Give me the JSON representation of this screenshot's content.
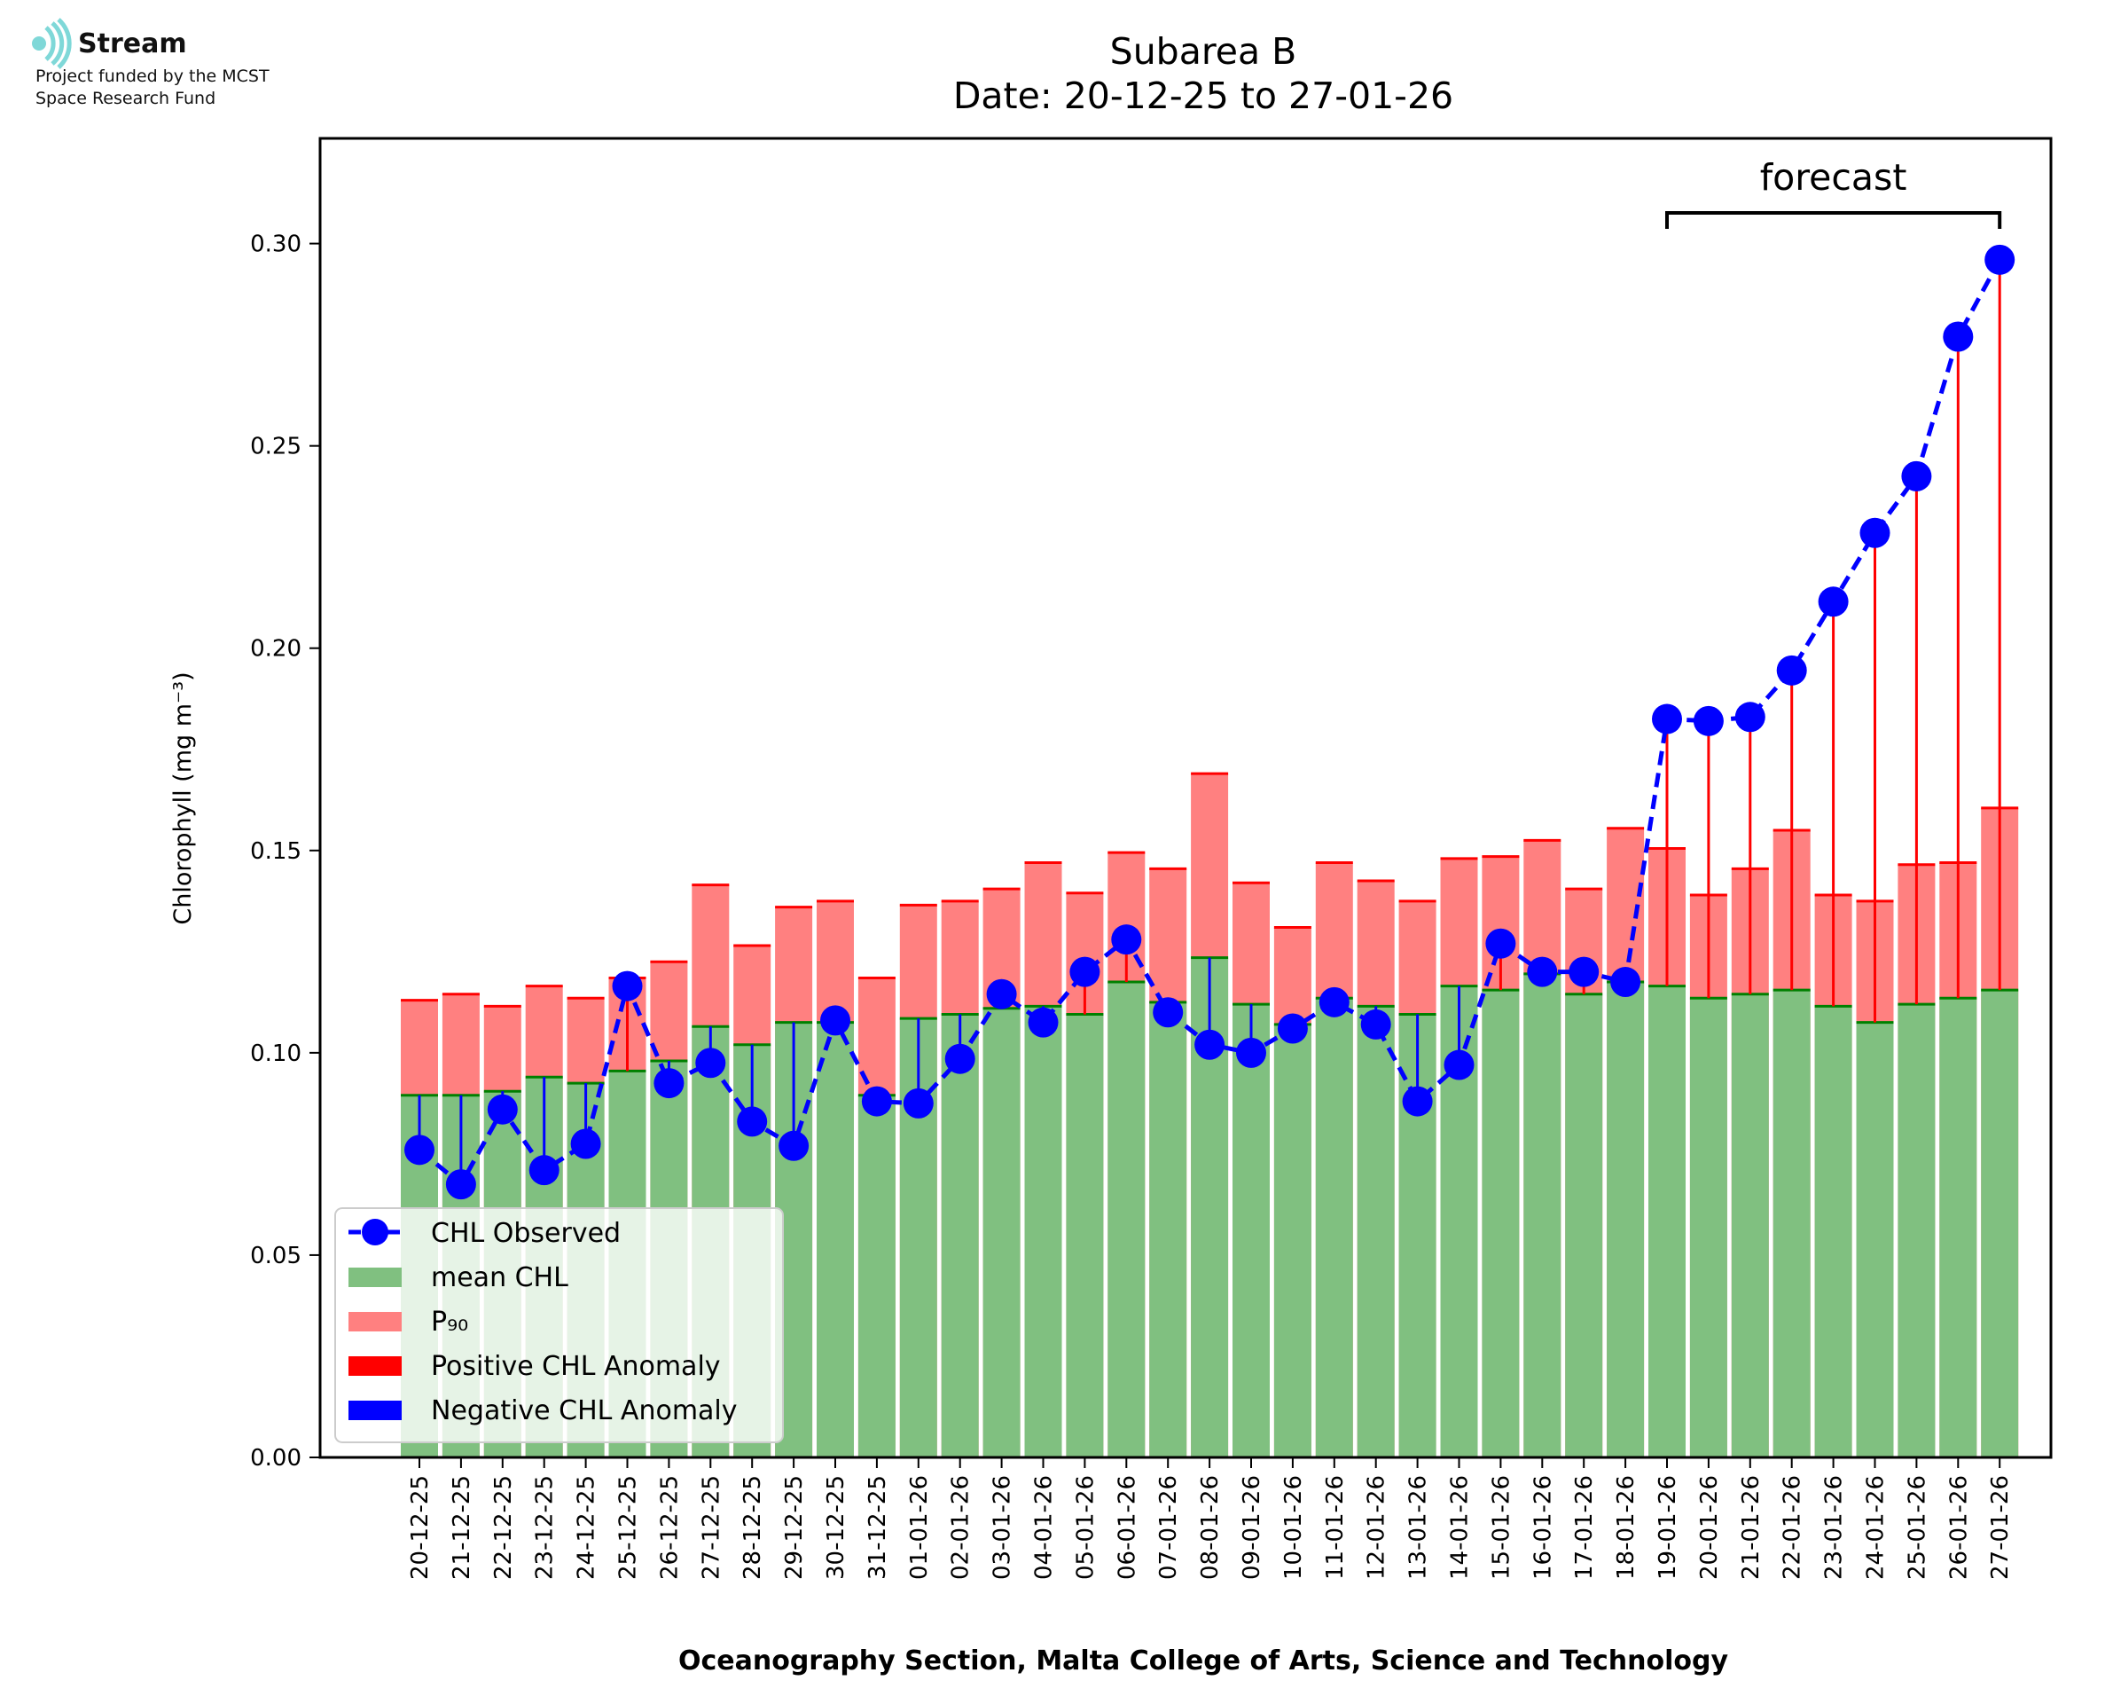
{
  "logo": {
    "title": "Stream",
    "subtitle_line1": "Project funded by the MCST",
    "subtitle_line2": "Space Research Fund"
  },
  "colors": {
    "mean": "#80c080",
    "mean_edge": "#008000",
    "p90": "#ff8080",
    "positive": "#ff0000",
    "negative": "#0000ff",
    "observed": "#0000ff"
  },
  "chart_data": {
    "type": "bar",
    "title": "Subarea B",
    "subtitle": "Date: 20-12-25 to 27-01-26",
    "xlabel": "Oceanography Section, Malta College of Arts, Science and Technology",
    "ylabel": "Chlorophyll (mg m⁻³)",
    "ylim": [
      0,
      0.326
    ],
    "yticks": [
      "0.00",
      "0.05",
      "0.10",
      "0.15",
      "0.20",
      "0.25",
      "0.30"
    ],
    "grid": false,
    "legend_position": "lower-left",
    "annotation": "forecast",
    "forecast_range": [
      "19-01-26",
      "27-01-26"
    ],
    "categories": [
      "20-12-25",
      "21-12-25",
      "22-12-25",
      "23-12-25",
      "24-12-25",
      "25-12-25",
      "26-12-25",
      "27-12-25",
      "28-12-25",
      "29-12-25",
      "30-12-25",
      "31-12-25",
      "01-01-26",
      "02-01-26",
      "03-01-26",
      "04-01-26",
      "05-01-26",
      "06-01-26",
      "07-01-26",
      "08-01-26",
      "09-01-26",
      "10-01-26",
      "11-01-26",
      "12-01-26",
      "13-01-26",
      "14-01-26",
      "15-01-26",
      "16-01-26",
      "17-01-26",
      "18-01-26",
      "19-01-26",
      "20-01-26",
      "21-01-26",
      "22-01-26",
      "23-01-26",
      "24-01-26",
      "25-01-26",
      "26-01-26",
      "27-01-26"
    ],
    "series": [
      {
        "name": "mean CHL",
        "values": [
          0.0895,
          0.0895,
          0.0905,
          0.094,
          0.0925,
          0.0955,
          0.098,
          0.1065,
          0.102,
          0.1075,
          0.1075,
          0.0895,
          0.1085,
          0.1095,
          0.111,
          0.1115,
          0.1095,
          0.1175,
          0.1125,
          0.1235,
          0.112,
          0.107,
          0.1135,
          0.1115,
          0.1095,
          0.1165,
          0.1155,
          0.1195,
          0.1145,
          0.1175,
          0.1165,
          0.1135,
          0.1145,
          0.1155,
          0.1115,
          0.1075,
          0.112,
          0.1135,
          0.1155
        ]
      },
      {
        "name": "P₉₀",
        "values": [
          0.113,
          0.1145,
          0.1115,
          0.1165,
          0.1135,
          0.1185,
          0.1225,
          0.1415,
          0.1265,
          0.136,
          0.1375,
          0.1185,
          0.1365,
          0.1375,
          0.1405,
          0.147,
          0.1395,
          0.1495,
          0.1455,
          0.169,
          0.142,
          0.131,
          0.147,
          0.1425,
          0.1375,
          0.148,
          0.1485,
          0.1525,
          0.1405,
          0.1555,
          0.1505,
          0.139,
          0.1455,
          0.155,
          0.139,
          0.1375,
          0.1465,
          0.147,
          0.1605
        ]
      },
      {
        "name": "CHL Observed",
        "values": [
          0.076,
          0.0675,
          0.086,
          0.071,
          0.0775,
          0.1165,
          0.0925,
          0.0975,
          0.083,
          0.077,
          0.108,
          0.088,
          0.0875,
          0.0985,
          0.1145,
          0.1075,
          0.12,
          0.128,
          0.11,
          0.102,
          0.1,
          0.106,
          0.1125,
          0.107,
          0.088,
          0.097,
          0.127,
          0.12,
          0.12,
          0.1175,
          0.1825,
          0.182,
          0.183,
          0.1945,
          0.2115,
          0.2285,
          0.2425,
          0.277,
          0.296
        ]
      }
    ],
    "legend": [
      "CHL Observed",
      "mean CHL",
      "P₉₀",
      "Positive CHL Anomaly",
      "Negative CHL Anomaly"
    ]
  }
}
